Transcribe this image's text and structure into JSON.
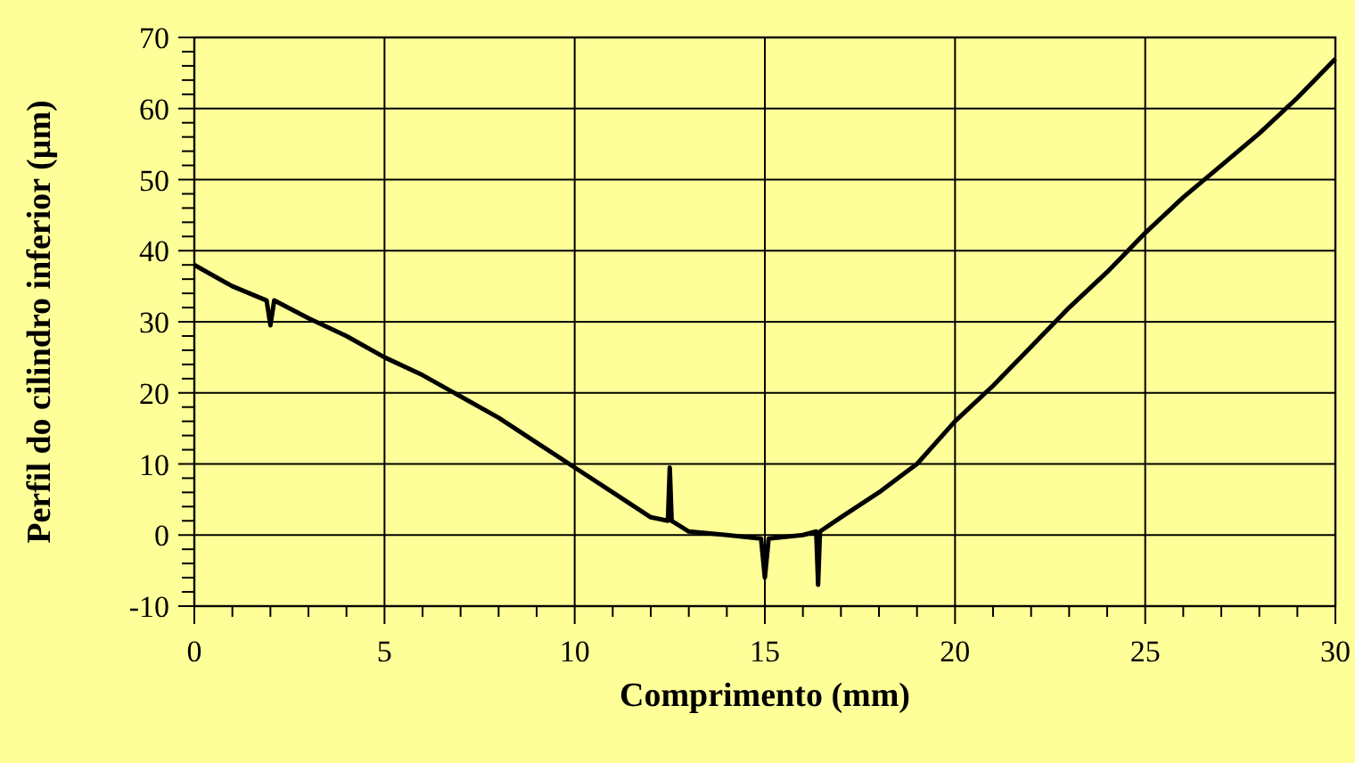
{
  "chart_data": {
    "type": "line",
    "xlabel": "Comprimento (mm)",
    "ylabel": "Perfil do cilindro inferior (µm)",
    "xlim": [
      0,
      30
    ],
    "xticks": [
      0,
      5,
      10,
      15,
      20,
      25,
      30
    ],
    "ylim": [
      -10,
      70
    ],
    "yticks": [
      -10,
      0,
      10,
      20,
      30,
      40,
      50,
      60,
      70
    ],
    "grid": true,
    "series": [
      {
        "color": "#000000",
        "x": [
          0,
          1,
          1.9,
          2,
          2.1,
          3,
          4,
          5,
          6,
          7,
          8,
          9,
          10,
          11,
          12,
          12.45,
          12.5,
          12.55,
          13,
          14,
          14.9,
          15,
          15.1,
          16,
          16.35,
          16.4,
          16.45,
          17,
          18,
          19,
          20,
          21,
          22,
          23,
          24,
          25,
          26,
          27,
          28,
          29,
          30
        ],
        "values": [
          38,
          35,
          33,
          29.5,
          33,
          30.5,
          28,
          25,
          22.5,
          19.5,
          16.5,
          13,
          9.5,
          6,
          2.5,
          2,
          9.5,
          2,
          0.5,
          0,
          -0.5,
          -6,
          -0.5,
          0,
          0.5,
          -7,
          0.5,
          2.5,
          6,
          10,
          16,
          21,
          26.5,
          32,
          37,
          42.5,
          47.5,
          52,
          56.5,
          61.5,
          67
        ]
      }
    ]
  }
}
